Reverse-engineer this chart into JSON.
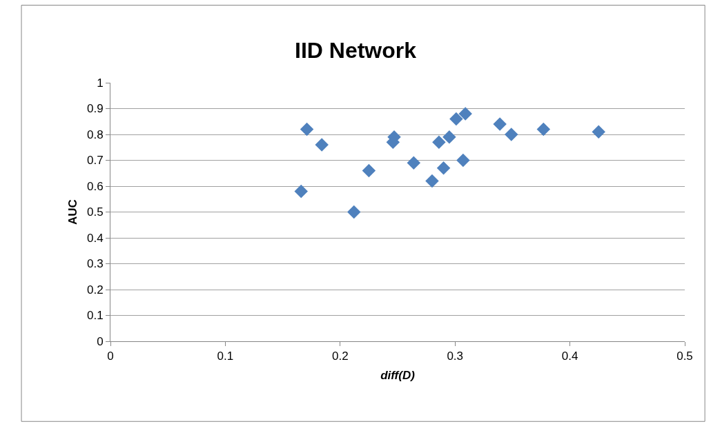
{
  "chart_data": {
    "type": "scatter",
    "title": "IID Network",
    "xlabel": "diff(D)",
    "ylabel": "AUC",
    "x": [
      0.166,
      0.171,
      0.184,
      0.212,
      0.225,
      0.246,
      0.247,
      0.264,
      0.28,
      0.286,
      0.29,
      0.295,
      0.301,
      0.307,
      0.309,
      0.339,
      0.349,
      0.377,
      0.425
    ],
    "values": [
      0.58,
      0.82,
      0.76,
      0.5,
      0.66,
      0.77,
      0.79,
      0.69,
      0.62,
      0.77,
      0.67,
      0.79,
      0.86,
      0.7,
      0.88,
      0.84,
      0.8,
      0.82,
      0.81
    ],
    "color": "#4f81bd",
    "marker": "diamond",
    "xlim": [
      0,
      0.5
    ],
    "xticks": [
      0,
      0.1,
      0.2,
      0.3,
      0.4,
      0.5
    ],
    "ylim": [
      0,
      1
    ],
    "yticks": [
      0,
      0.1,
      0.2,
      0.3,
      0.4,
      0.5,
      0.6,
      0.7,
      0.8,
      0.9,
      1
    ],
    "grid": "y",
    "legend": false
  }
}
